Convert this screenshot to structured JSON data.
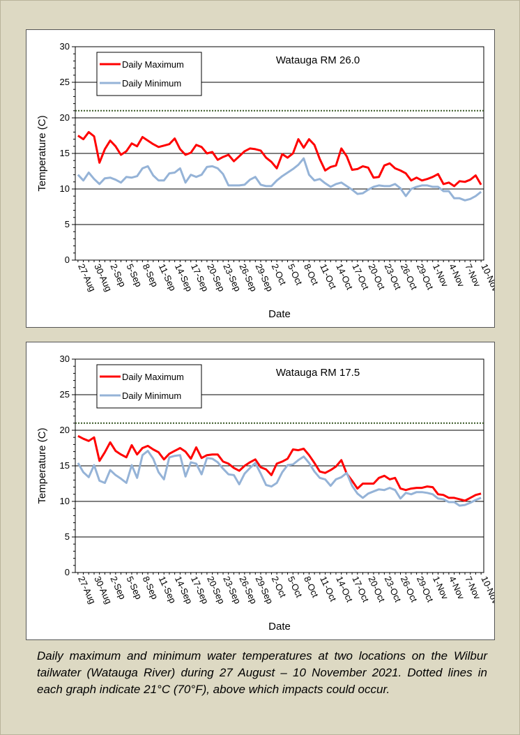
{
  "chart_data": [
    {
      "type": "line",
      "title": "Watauga RM 26.0",
      "x_label": "Date",
      "y_label": "Temperature (C)",
      "categories": [
        "27-Aug",
        null,
        null,
        "30-Aug",
        null,
        null,
        "2-Sep",
        null,
        null,
        "5-Sep",
        null,
        null,
        "8-Sep",
        null,
        null,
        "11-Sep",
        null,
        null,
        "14-Sep",
        null,
        null,
        "17-Sep",
        null,
        null,
        "20-Sep",
        null,
        null,
        "23-Sep",
        null,
        null,
        "26-Sep",
        null,
        null,
        "29-Sep",
        null,
        null,
        "2-Oct",
        null,
        null,
        "5-Oct",
        null,
        null,
        "8-Oct",
        null,
        null,
        "11-Oct",
        null,
        null,
        "14-Oct",
        null,
        null,
        "17-Oct",
        null,
        null,
        "20-Oct",
        null,
        null,
        "23-Oct",
        null,
        null,
        "26-Oct",
        null,
        null,
        "29-Oct",
        null,
        null,
        "1-Nov",
        null,
        null,
        "4-Nov",
        null,
        null,
        "7-Nov",
        null,
        null,
        "10-Nov"
      ],
      "series": [
        {
          "name": "Daily Maximum",
          "color": "#ff0000",
          "values": [
            17.5,
            17.0,
            18.0,
            17.4,
            13.7,
            15.6,
            16.8,
            16.0,
            14.8,
            15.3,
            16.4,
            16.0,
            17.3,
            16.8,
            16.3,
            15.9,
            16.1,
            16.3,
            17.1,
            15.6,
            14.8,
            15.1,
            16.2,
            15.9,
            15.0,
            15.2,
            14.1,
            14.5,
            14.8,
            13.9,
            14.6,
            15.3,
            15.7,
            15.6,
            15.4,
            14.4,
            13.8,
            12.9,
            14.9,
            14.4,
            15.0,
            17.0,
            15.8,
            17.0,
            16.2,
            14.2,
            12.6,
            13.1,
            13.3,
            15.7,
            14.6,
            12.7,
            12.8,
            13.2,
            13.0,
            11.6,
            11.7,
            13.3,
            13.6,
            12.9,
            12.6,
            12.2,
            11.2,
            11.6,
            11.2,
            11.4,
            11.7,
            12.1,
            10.7,
            10.9,
            10.4,
            11.1,
            11.0,
            11.3,
            11.9,
            10.6
          ]
        },
        {
          "name": "Daily Minimum",
          "color": "#95b3d7",
          "values": [
            12.0,
            11.2,
            12.3,
            11.4,
            10.7,
            11.5,
            11.6,
            11.3,
            10.9,
            11.7,
            11.6,
            11.8,
            12.9,
            13.2,
            11.9,
            11.2,
            11.2,
            12.2,
            12.3,
            12.9,
            10.9,
            12.0,
            11.7,
            12.0,
            13.1,
            13.2,
            12.9,
            12.1,
            10.5,
            10.5,
            10.5,
            10.6,
            11.3,
            11.7,
            10.6,
            10.4,
            10.4,
            11.2,
            11.8,
            12.3,
            12.8,
            13.4,
            14.3,
            12.0,
            11.2,
            11.4,
            10.8,
            10.3,
            10.7,
            10.9,
            10.4,
            9.9,
            9.3,
            9.4,
            9.9,
            10.3,
            10.5,
            10.4,
            10.4,
            10.7,
            10.1,
            9.0,
            10.0,
            10.3,
            10.5,
            10.5,
            10.3,
            10.3,
            9.7,
            9.7,
            8.7,
            8.7,
            8.4,
            8.6,
            9.0,
            9.6
          ]
        }
      ],
      "ylim": [
        0,
        30
      ],
      "yticks": [
        0,
        5,
        10,
        15,
        20,
        25,
        30
      ],
      "grid": true,
      "legend": "upper left",
      "threshold": {
        "value": 21,
        "color": "#375623"
      }
    },
    {
      "type": "line",
      "title": "Watauga RM 17.5",
      "x_label": "Date",
      "y_label": "Temperature (C)",
      "categories": [
        "27-Aug",
        null,
        null,
        "30-Aug",
        null,
        null,
        "2-Sep",
        null,
        null,
        "5-Sep",
        null,
        null,
        "8-Sep",
        null,
        null,
        "11-Sep",
        null,
        null,
        "14-Sep",
        null,
        null,
        "17-Sep",
        null,
        null,
        "20-Sep",
        null,
        null,
        "23-Sep",
        null,
        null,
        "26-Sep",
        null,
        null,
        "29-Sep",
        null,
        null,
        "2-Oct",
        null,
        null,
        "5-Oct",
        null,
        null,
        "8-Oct",
        null,
        null,
        "11-Oct",
        null,
        null,
        "14-Oct",
        null,
        null,
        "17-Oct",
        null,
        null,
        "20-Oct",
        null,
        null,
        "23-Oct",
        null,
        null,
        "26-Oct",
        null,
        null,
        "29-Oct",
        null,
        null,
        "1-Nov",
        null,
        null,
        "4-Nov",
        null,
        null,
        "7-Nov",
        null,
        null,
        "10-Nov"
      ],
      "series": [
        {
          "name": "Daily Maximum",
          "color": "#ff0000",
          "values": [
            19.2,
            18.8,
            18.5,
            19.0,
            15.7,
            16.9,
            18.3,
            17.1,
            16.6,
            16.2,
            17.9,
            16.6,
            17.5,
            17.8,
            17.3,
            16.9,
            15.9,
            16.7,
            17.1,
            17.5,
            17.0,
            16.0,
            17.6,
            16.1,
            16.5,
            16.6,
            16.6,
            15.6,
            15.3,
            14.7,
            14.3,
            15.0,
            15.5,
            15.9,
            14.8,
            14.5,
            13.7,
            15.3,
            15.6,
            16.0,
            17.3,
            17.2,
            17.4,
            16.5,
            15.4,
            14.2,
            14.0,
            14.4,
            14.9,
            15.8,
            13.9,
            12.9,
            11.8,
            12.5,
            12.5,
            12.5,
            13.3,
            13.6,
            13.1,
            13.3,
            11.8,
            11.6,
            11.8,
            11.9,
            11.9,
            12.1,
            12.0,
            11.0,
            10.9,
            10.5,
            10.5,
            10.3,
            10.1,
            10.5,
            10.9,
            11.1
          ]
        },
        {
          "name": "Daily Minimum",
          "color": "#95b3d7",
          "values": [
            15.4,
            14.1,
            13.4,
            15.1,
            12.9,
            12.6,
            14.4,
            13.7,
            13.2,
            12.6,
            15.1,
            13.3,
            16.5,
            17.1,
            16.0,
            14.1,
            13.1,
            16.2,
            16.4,
            16.5,
            13.5,
            15.5,
            15.3,
            13.8,
            16.1,
            16.0,
            15.5,
            14.6,
            13.8,
            13.7,
            12.4,
            13.9,
            14.7,
            15.4,
            13.9,
            12.3,
            12.1,
            12.6,
            14.1,
            15.1,
            15.2,
            15.8,
            16.3,
            15.4,
            14.2,
            13.3,
            13.1,
            12.2,
            13.1,
            13.4,
            14.0,
            12.2,
            11.1,
            10.5,
            11.1,
            11.4,
            11.7,
            11.6,
            11.9,
            11.6,
            10.4,
            11.2,
            11.0,
            11.3,
            11.3,
            11.2,
            11.0,
            10.4,
            10.3,
            9.9,
            9.9,
            9.4,
            9.5,
            9.8,
            10.2,
            10.5
          ]
        }
      ],
      "ylim": [
        0,
        30
      ],
      "yticks": [
        0,
        5,
        10,
        15,
        20,
        25,
        30
      ],
      "grid": true,
      "legend": "upper left",
      "threshold": {
        "value": 21,
        "color": "#375623"
      }
    }
  ],
  "caption": "Daily maximum and minimum water temperatures at two locations on the Wilbur tailwater (Watauga River) during 27 August – 10 November 2021. Dotted lines in each graph indicate 21°C (70°F), above which impacts could occur."
}
